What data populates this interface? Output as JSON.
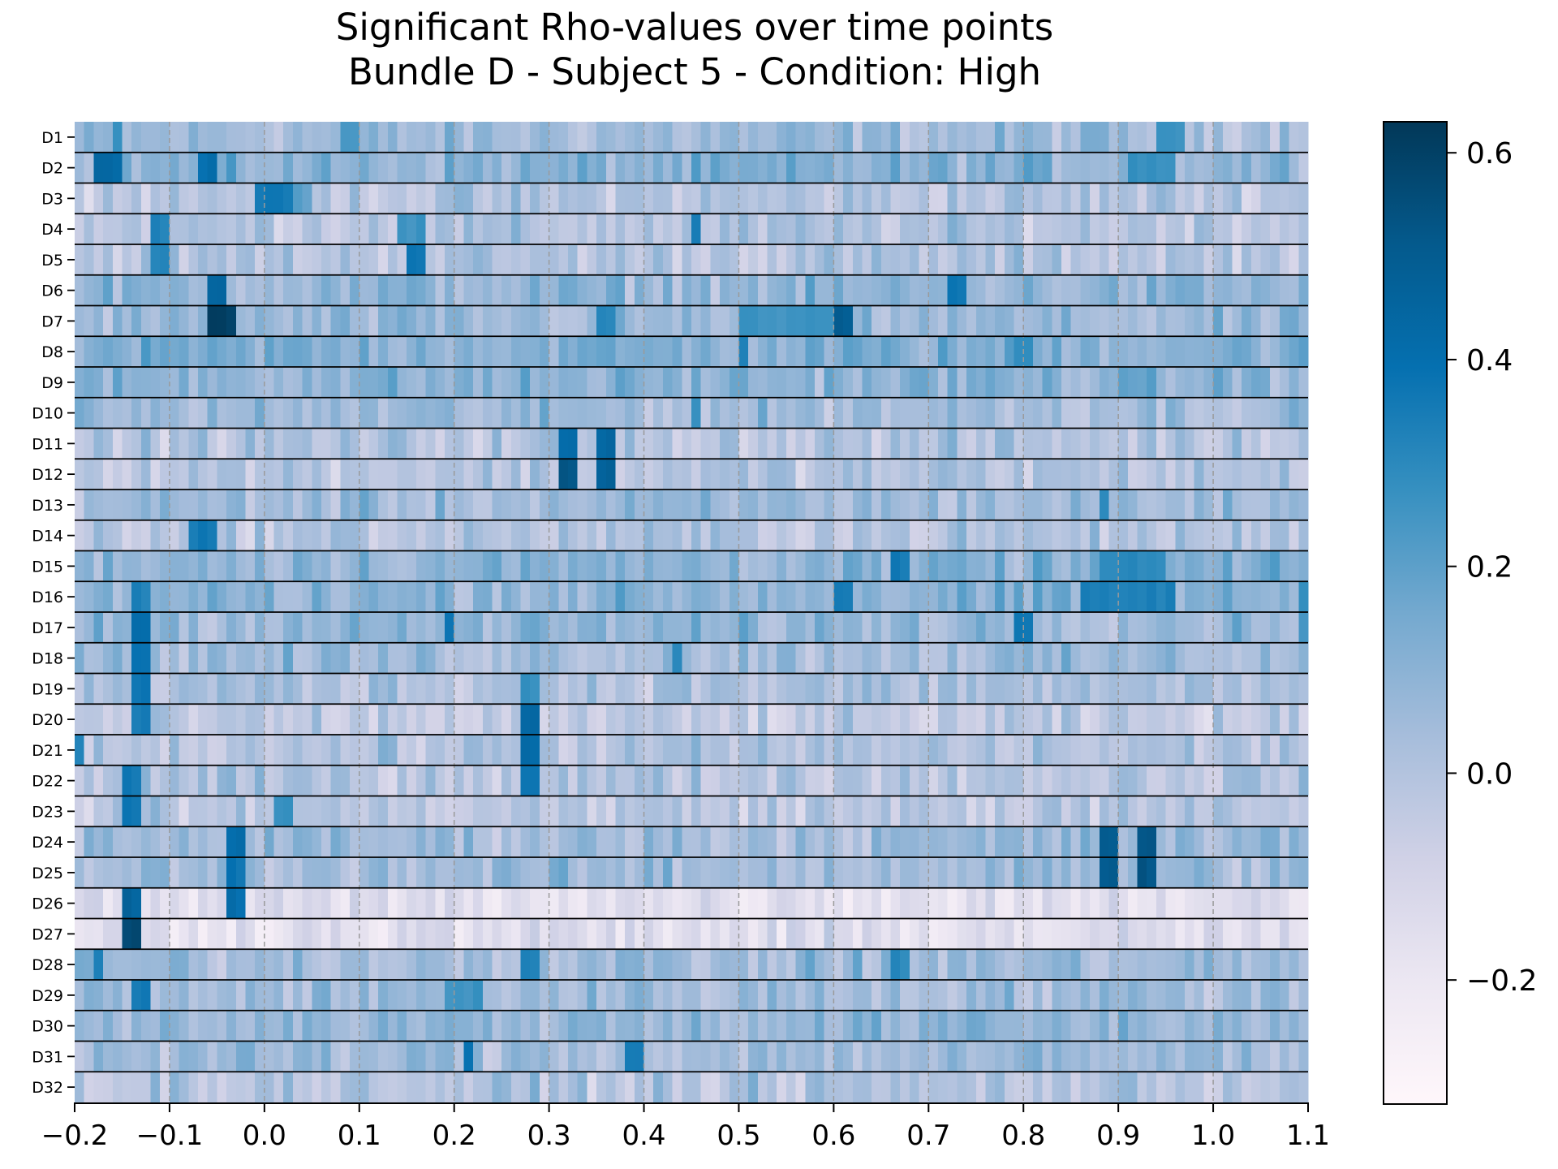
{
  "chart_data": {
    "type": "heatmap",
    "title": "Significant Rho-values over time points",
    "subtitle": "Bundle D - Subject 5 - Condition: High",
    "xlabel": "",
    "ylabel": "",
    "x_range": [
      -0.2,
      1.1
    ],
    "x_ticks": [
      -0.2,
      -0.1,
      0.0,
      0.1,
      0.2,
      0.3,
      0.4,
      0.5,
      0.6,
      0.7,
      0.8,
      0.9,
      1.0,
      1.1
    ],
    "x_tick_labels": [
      "−0.2",
      "−0.1",
      "0.0",
      "0.1",
      "0.2",
      "0.3",
      "0.4",
      "0.5",
      "0.6",
      "0.7",
      "0.8",
      "0.9",
      "1.0",
      "1.1"
    ],
    "time_bins": 130,
    "rows": [
      "D1",
      "D2",
      "D3",
      "D4",
      "D5",
      "D6",
      "D7",
      "D8",
      "D9",
      "D10",
      "D11",
      "D12",
      "D13",
      "D14",
      "D15",
      "D16",
      "D17",
      "D18",
      "D19",
      "D20",
      "D21",
      "D22",
      "D23",
      "D24",
      "D25",
      "D26",
      "D27",
      "D28",
      "D29",
      "D30",
      "D31",
      "D32"
    ],
    "colorbar": {
      "range": [
        -0.32,
        0.63
      ],
      "ticks": [
        -0.2,
        0.0,
        0.2,
        0.4,
        0.6
      ],
      "tick_labels": [
        "−0.2",
        "0.0",
        "0.2",
        "0.4",
        "0.6"
      ],
      "colormap": "PuBu",
      "stops": [
        "#fff7fb",
        "#ece7f2",
        "#d0d1e6",
        "#a6bddb",
        "#74a9cf",
        "#3690c0",
        "#0570b0",
        "#045a8d",
        "#023858"
      ]
    },
    "grid": "dashed vertical lines at x ticks; solid black separators between rows",
    "base_level": [
      0.05,
      0.1,
      0.0,
      0.0,
      0.0,
      0.08,
      0.05,
      0.12,
      0.1,
      0.05,
      0.0,
      0.0,
      0.05,
      0.0,
      0.1,
      0.1,
      0.08,
      0.05,
      0.02,
      -0.05,
      0.0,
      0.0,
      -0.02,
      0.05,
      0.05,
      -0.15,
      -0.15,
      0.05,
      0.05,
      0.08,
      0.05,
      0.0
    ],
    "hotspots": [
      {
        "row": "D1",
        "x": [
          -0.16,
          -0.15
        ],
        "v": 0.28
      },
      {
        "row": "D1",
        "x": [
          0.08,
          0.1
        ],
        "v": 0.25
      },
      {
        "row": "D1",
        "x": [
          0.95,
          0.97
        ],
        "v": 0.28
      },
      {
        "row": "D2",
        "x": [
          -0.17,
          -0.15
        ],
        "v": 0.45
      },
      {
        "row": "D2",
        "x": [
          -0.065,
          -0.055
        ],
        "v": 0.42
      },
      {
        "row": "D2",
        "x": [
          0.91,
          0.96
        ],
        "v": 0.3
      },
      {
        "row": "D3",
        "x": [
          -0.005,
          0.025
        ],
        "v": 0.38
      },
      {
        "row": "D3",
        "x": [
          0.03,
          0.05
        ],
        "v": 0.22
      },
      {
        "row": "D4",
        "x": [
          -0.115,
          -0.105
        ],
        "v": 0.35
      },
      {
        "row": "D4",
        "x": [
          0.14,
          0.17
        ],
        "v": 0.28
      },
      {
        "row": "D4",
        "x": [
          0.45,
          0.46
        ],
        "v": 0.35
      },
      {
        "row": "D5",
        "x": [
          -0.115,
          -0.105
        ],
        "v": 0.35
      },
      {
        "row": "D5",
        "x": [
          0.15,
          0.17
        ],
        "v": 0.4
      },
      {
        "row": "D6",
        "x": [
          -0.06,
          -0.045
        ],
        "v": 0.48
      },
      {
        "row": "D6",
        "x": [
          0.73,
          0.74
        ],
        "v": 0.38
      },
      {
        "row": "D7",
        "x": [
          -0.06,
          -0.035
        ],
        "v": 0.62
      },
      {
        "row": "D7",
        "x": [
          0.5,
          0.6
        ],
        "v": 0.28
      },
      {
        "row": "D7",
        "x": [
          0.6,
          0.62
        ],
        "v": 0.52
      },
      {
        "row": "D7",
        "x": [
          0.355,
          0.365
        ],
        "v": 0.32
      },
      {
        "row": "D8",
        "x": [
          0.5,
          0.51
        ],
        "v": 0.35
      },
      {
        "row": "D8",
        "x": [
          0.8,
          0.81
        ],
        "v": 0.32
      },
      {
        "row": "D10",
        "x": [
          0.45,
          0.46
        ],
        "v": 0.3
      },
      {
        "row": "D11",
        "x": [
          0.31,
          0.33
        ],
        "v": 0.45
      },
      {
        "row": "D11",
        "x": [
          0.355,
          0.365
        ],
        "v": 0.45
      },
      {
        "row": "D12",
        "x": [
          0.31,
          0.33
        ],
        "v": 0.55
      },
      {
        "row": "D12",
        "x": [
          0.355,
          0.37
        ],
        "v": 0.5
      },
      {
        "row": "D13",
        "x": [
          0.88,
          0.89
        ],
        "v": 0.3
      },
      {
        "row": "D14",
        "x": [
          -0.08,
          -0.055
        ],
        "v": 0.38
      },
      {
        "row": "D15",
        "x": [
          0.66,
          0.68
        ],
        "v": 0.38
      },
      {
        "row": "D15",
        "x": [
          0.88,
          0.95
        ],
        "v": 0.32
      },
      {
        "row": "D16",
        "x": [
          -0.135,
          -0.125
        ],
        "v": 0.35
      },
      {
        "row": "D16",
        "x": [
          0.6,
          0.62
        ],
        "v": 0.38
      },
      {
        "row": "D16",
        "x": [
          0.86,
          0.96
        ],
        "v": 0.35
      },
      {
        "row": "D16",
        "x": [
          1.09,
          1.1
        ],
        "v": 0.3
      },
      {
        "row": "D17",
        "x": [
          -0.135,
          -0.125
        ],
        "v": 0.42
      },
      {
        "row": "D17",
        "x": [
          0.19,
          0.2
        ],
        "v": 0.38
      },
      {
        "row": "D17",
        "x": [
          0.8,
          0.81
        ],
        "v": 0.4
      },
      {
        "row": "D17",
        "x": [
          1.09,
          1.1
        ],
        "v": 0.28
      },
      {
        "row": "D18",
        "x": [
          -0.135,
          -0.125
        ],
        "v": 0.42
      },
      {
        "row": "D18",
        "x": [
          0.43,
          0.44
        ],
        "v": 0.32
      },
      {
        "row": "D19",
        "x": [
          -0.135,
          -0.125
        ],
        "v": 0.4
      },
      {
        "row": "D19",
        "x": [
          0.275,
          0.29
        ],
        "v": 0.3
      },
      {
        "row": "D20",
        "x": [
          -0.135,
          -0.125
        ],
        "v": 0.38
      },
      {
        "row": "D20",
        "x": [
          0.275,
          0.285
        ],
        "v": 0.45
      },
      {
        "row": "D21",
        "x": [
          -0.2,
          -0.19
        ],
        "v": 0.32
      },
      {
        "row": "D21",
        "x": [
          0.275,
          0.285
        ],
        "v": 0.45
      },
      {
        "row": "D22",
        "x": [
          -0.15,
          -0.13
        ],
        "v": 0.38
      },
      {
        "row": "D22",
        "x": [
          0.275,
          0.285
        ],
        "v": 0.4
      },
      {
        "row": "D23",
        "x": [
          -0.15,
          -0.13
        ],
        "v": 0.38
      },
      {
        "row": "D23",
        "x": [
          0.015,
          0.03
        ],
        "v": 0.28
      },
      {
        "row": "D24",
        "x": [
          -0.035,
          -0.025
        ],
        "v": 0.42
      },
      {
        "row": "D24",
        "x": [
          0.885,
          0.895
        ],
        "v": 0.52
      },
      {
        "row": "D24",
        "x": [
          0.925,
          0.935
        ],
        "v": 0.55
      },
      {
        "row": "D25",
        "x": [
          -0.035,
          -0.025
        ],
        "v": 0.4
      },
      {
        "row": "D25",
        "x": [
          0.885,
          0.895
        ],
        "v": 0.52
      },
      {
        "row": "D25",
        "x": [
          0.925,
          0.935
        ],
        "v": 0.55
      },
      {
        "row": "D26",
        "x": [
          -0.145,
          -0.135
        ],
        "v": 0.48
      },
      {
        "row": "D26",
        "x": [
          -0.035,
          -0.025
        ],
        "v": 0.42
      },
      {
        "row": "D27",
        "x": [
          -0.145,
          -0.13
        ],
        "v": 0.6
      },
      {
        "row": "D28",
        "x": [
          -0.18,
          -0.17
        ],
        "v": 0.35
      },
      {
        "row": "D28",
        "x": [
          0.275,
          0.285
        ],
        "v": 0.35
      },
      {
        "row": "D28",
        "x": [
          0.665,
          0.675
        ],
        "v": 0.32
      },
      {
        "row": "D29",
        "x": [
          -0.135,
          -0.125
        ],
        "v": 0.38
      },
      {
        "row": "D29",
        "x": [
          0.19,
          0.23
        ],
        "v": 0.28
      },
      {
        "row": "D31",
        "x": [
          0.21,
          0.22
        ],
        "v": 0.42
      },
      {
        "row": "D31",
        "x": [
          0.385,
          0.395
        ],
        "v": 0.38
      }
    ]
  }
}
